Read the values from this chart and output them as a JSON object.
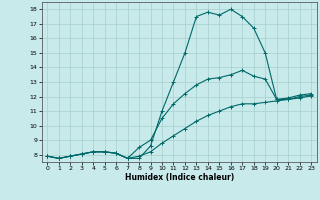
{
  "xlabel": "Humidex (Indice chaleur)",
  "background_color": "#c8eaea",
  "grid_color": "#a8cece",
  "line_color": "#006868",
  "xlim": [
    -0.5,
    23.5
  ],
  "ylim": [
    7.5,
    18.5
  ],
  "xticks": [
    0,
    1,
    2,
    3,
    4,
    5,
    6,
    7,
    8,
    9,
    10,
    11,
    12,
    13,
    14,
    15,
    16,
    17,
    18,
    19,
    20,
    21,
    22,
    23
  ],
  "yticks": [
    8,
    9,
    10,
    11,
    12,
    13,
    14,
    15,
    16,
    17,
    18
  ],
  "line1_x": [
    0,
    1,
    2,
    3,
    4,
    5,
    6,
    7,
    8,
    9,
    10,
    11,
    12,
    13,
    14,
    15,
    16,
    17,
    18,
    19,
    20,
    21,
    22,
    23
  ],
  "line1_y": [
    7.9,
    7.75,
    7.9,
    8.05,
    8.2,
    8.2,
    8.1,
    7.75,
    7.75,
    8.6,
    11.0,
    13.0,
    15.0,
    17.5,
    17.8,
    17.6,
    18.0,
    17.5,
    16.7,
    15.0,
    11.8,
    11.8,
    12.0,
    12.1
  ],
  "line2_x": [
    0,
    1,
    2,
    3,
    4,
    5,
    6,
    7,
    8,
    9,
    10,
    11,
    12,
    13,
    14,
    15,
    16,
    17,
    18,
    19,
    20,
    21,
    22,
    23
  ],
  "line2_y": [
    7.9,
    7.75,
    7.9,
    8.05,
    8.2,
    8.2,
    8.1,
    7.75,
    8.5,
    9.0,
    10.5,
    11.5,
    12.2,
    12.8,
    13.2,
    13.3,
    13.5,
    13.8,
    13.4,
    13.2,
    11.8,
    11.9,
    12.1,
    12.2
  ],
  "line3_x": [
    0,
    1,
    2,
    3,
    4,
    5,
    6,
    7,
    8,
    9,
    10,
    11,
    12,
    13,
    14,
    15,
    16,
    17,
    18,
    19,
    20,
    21,
    22,
    23
  ],
  "line3_y": [
    7.9,
    7.75,
    7.9,
    8.05,
    8.2,
    8.2,
    8.1,
    7.75,
    7.9,
    8.2,
    8.8,
    9.3,
    9.8,
    10.3,
    10.7,
    11.0,
    11.3,
    11.5,
    11.5,
    11.6,
    11.7,
    11.8,
    11.9,
    12.05
  ]
}
